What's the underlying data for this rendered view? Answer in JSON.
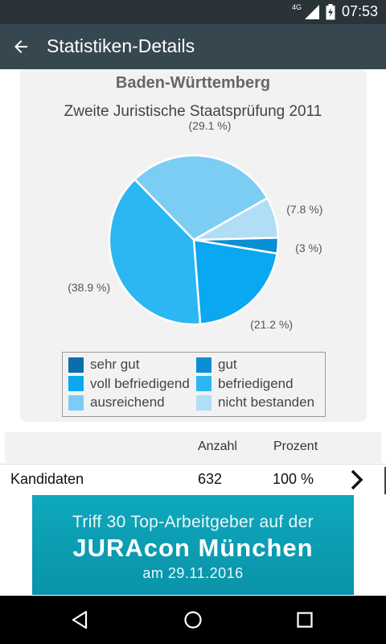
{
  "statusbar": {
    "time": "07:53",
    "network": "4G",
    "icons": [
      "signal-icon",
      "battery-icon"
    ]
  },
  "toolbar": {
    "title": "Statistiken-Details",
    "back_icon": "arrow-left-icon"
  },
  "chart_data": {
    "type": "pie",
    "title": "Baden-Württemberg",
    "subtitle": "Zweite Juristische Staatsprüfung 2011",
    "legend_position": "bottom",
    "slices": [
      {
        "name": "sehr gut",
        "value": 0,
        "label": "",
        "color": "#0a6fa8"
      },
      {
        "name": "gut",
        "value": 3,
        "label": "(3 %)",
        "color": "#0a8fd4"
      },
      {
        "name": "voll befriedigend",
        "value": 21.2,
        "label": "(21.2 %)",
        "color": "#0aa8f0"
      },
      {
        "name": "befriedigend",
        "value": 38.9,
        "label": "(38.9 %)",
        "color": "#2cb6f2"
      },
      {
        "name": "ausreichend",
        "value": 29.1,
        "label": "(29.1 %)",
        "color": "#7ccdf3"
      },
      {
        "name": "nicht bestanden",
        "value": 7.8,
        "label": "(7.8 %)",
        "color": "#b0def5"
      }
    ]
  },
  "table": {
    "headers": [
      "",
      "Anzahl",
      "Prozent"
    ],
    "rows": [
      {
        "label": "Kandidaten",
        "anzahl": "632",
        "prozent": "100 %"
      }
    ]
  },
  "banner": {
    "line1": "Triff 30 Top-Arbeitgeber auf der",
    "line2": "JURAcon München",
    "line3": "am 29.11.2016",
    "color": "#0aa0b6"
  },
  "navbar": {
    "buttons": [
      "back-triangle-icon",
      "home-circle-icon",
      "recents-square-icon"
    ]
  }
}
